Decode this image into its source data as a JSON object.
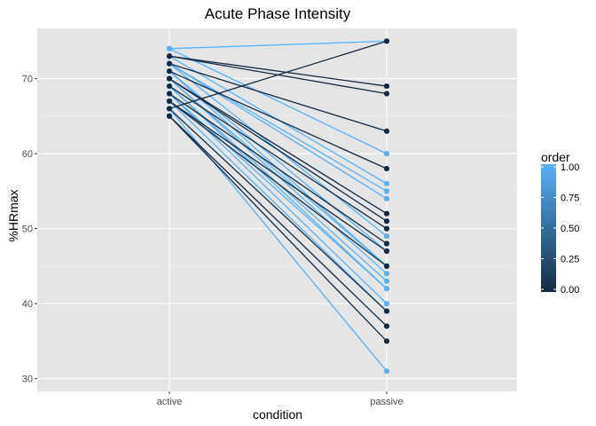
{
  "chart_data": {
    "type": "line",
    "title": "Acute Phase Intensity",
    "xlabel": "condition",
    "ylabel": "%HRmax",
    "categories": [
      "active",
      "passive"
    ],
    "ylim": [
      28.3,
      76.7
    ],
    "yticks": [
      30,
      40,
      50,
      60,
      70
    ],
    "grid": true,
    "legend": {
      "title": "order",
      "position": "right",
      "type": "colorbar",
      "low_color": "#132b43",
      "high_color": "#56b1f7",
      "ticks": [
        "1.00",
        "0.75",
        "0.50",
        "0.25",
        "0.00"
      ],
      "tick_values": [
        1.0,
        0.75,
        0.5,
        0.25,
        0.0
      ]
    },
    "colors": {
      "panel_bg": "#e5e5e5",
      "grid_major": "#ffffff",
      "grid_minor": "#f0f0f0",
      "order_0": "#132b43",
      "order_1": "#56b1f7"
    },
    "series": [
      {
        "order": 1,
        "values": [
          74,
          75
        ]
      },
      {
        "order": 1,
        "values": [
          74,
          60
        ]
      },
      {
        "order": 1,
        "values": [
          73,
          56
        ]
      },
      {
        "order": 1,
        "values": [
          72,
          55
        ]
      },
      {
        "order": 1,
        "values": [
          72,
          54
        ]
      },
      {
        "order": 1,
        "values": [
          72,
          49
        ]
      },
      {
        "order": 1,
        "values": [
          71,
          47
        ]
      },
      {
        "order": 1,
        "values": [
          71,
          45
        ]
      },
      {
        "order": 1,
        "values": [
          70,
          45
        ]
      },
      {
        "order": 1,
        "values": [
          70,
          44
        ]
      },
      {
        "order": 1,
        "values": [
          69,
          43
        ]
      },
      {
        "order": 1,
        "values": [
          69,
          42
        ]
      },
      {
        "order": 1,
        "values": [
          68,
          42
        ]
      },
      {
        "order": 1,
        "values": [
          68,
          40
        ]
      },
      {
        "order": 1,
        "values": [
          67,
          39
        ]
      },
      {
        "order": 1,
        "values": [
          66,
          31
        ]
      },
      {
        "order": 0,
        "values": [
          73,
          69
        ]
      },
      {
        "order": 0,
        "values": [
          73,
          68
        ]
      },
      {
        "order": 0,
        "values": [
          72,
          63
        ]
      },
      {
        "order": 0,
        "values": [
          71,
          58
        ]
      },
      {
        "order": 0,
        "values": [
          70,
          52
        ]
      },
      {
        "order": 0,
        "values": [
          70,
          51
        ]
      },
      {
        "order": 0,
        "values": [
          69,
          50
        ]
      },
      {
        "order": 0,
        "values": [
          68,
          48
        ]
      },
      {
        "order": 0,
        "values": [
          67,
          47
        ]
      },
      {
        "order": 0,
        "values": [
          67,
          45
        ]
      },
      {
        "order": 0,
        "values": [
          66,
          75
        ]
      },
      {
        "order": 0,
        "values": [
          66,
          39
        ]
      },
      {
        "order": 0,
        "values": [
          65,
          37
        ]
      },
      {
        "order": 0,
        "values": [
          65,
          35
        ]
      }
    ]
  }
}
